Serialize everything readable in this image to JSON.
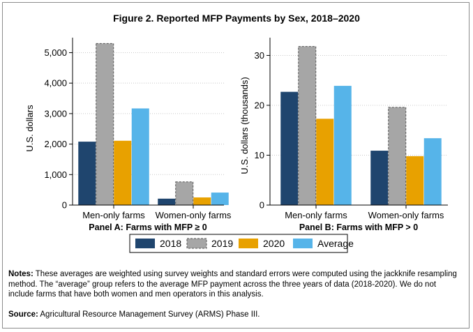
{
  "figure": {
    "title": "Figure 2. Reported MFP Payments by Sex, 2018–2020",
    "notes_label": "Notes:",
    "notes_text": "These averages are weighted using survey weights and standard errors were computed using the jackknife resampling method. The “average” group refers to the average MFP payment across the three years of data (2018-2020). We do not include farms that have both women and men operators in this analysis.",
    "source_label": "Source:",
    "source_text": "Agricultural Resource Management Survey (ARMS) Phase III."
  },
  "chart_data": [
    {
      "type": "bar",
      "panel_title": "Panel A: Farms with MFP ≥ 0",
      "ylabel": "U.S. dollars",
      "ylim": [
        0,
        5400
      ],
      "yticks": [
        0,
        1000,
        2000,
        3000,
        4000,
        5000
      ],
      "ytick_labels": [
        "0",
        "1,000",
        "2,000",
        "3,000",
        "4,000",
        "5,000"
      ],
      "categories": [
        "Men-only farms",
        "Women-only farms"
      ],
      "series": [
        {
          "name": "2018",
          "values": [
            2080,
            210
          ]
        },
        {
          "name": "2019",
          "values": [
            5300,
            760
          ]
        },
        {
          "name": "2020",
          "values": [
            2110,
            250
          ]
        },
        {
          "name": "Average",
          "values": [
            3170,
            410
          ]
        }
      ],
      "grid": true
    },
    {
      "type": "bar",
      "panel_title": "Panel B: Farms with MFP > 0",
      "ylabel": "U.S. dollars (thousands)",
      "ylim": [
        0,
        33
      ],
      "yticks": [
        0,
        10,
        20,
        30
      ],
      "ytick_labels": [
        "0",
        "10",
        "20",
        "30"
      ],
      "categories": [
        "Men-only farms",
        "Women-only farms"
      ],
      "series": [
        {
          "name": "2018",
          "values": [
            22.7,
            10.9
          ]
        },
        {
          "name": "2019",
          "values": [
            31.8,
            19.6
          ]
        },
        {
          "name": "2020",
          "values": [
            17.3,
            9.8
          ]
        },
        {
          "name": "Average",
          "values": [
            23.9,
            13.4
          ]
        }
      ],
      "grid": true
    }
  ],
  "legend": {
    "placement": "bottom-center",
    "items": [
      "2018",
      "2019",
      "2020",
      "Average"
    ]
  },
  "colors": {
    "2018": "#1f456e",
    "2019": "#a6a6a6",
    "2020": "#e8a100",
    "Average": "#56b4e9",
    "grid": "#c8c8c8"
  }
}
